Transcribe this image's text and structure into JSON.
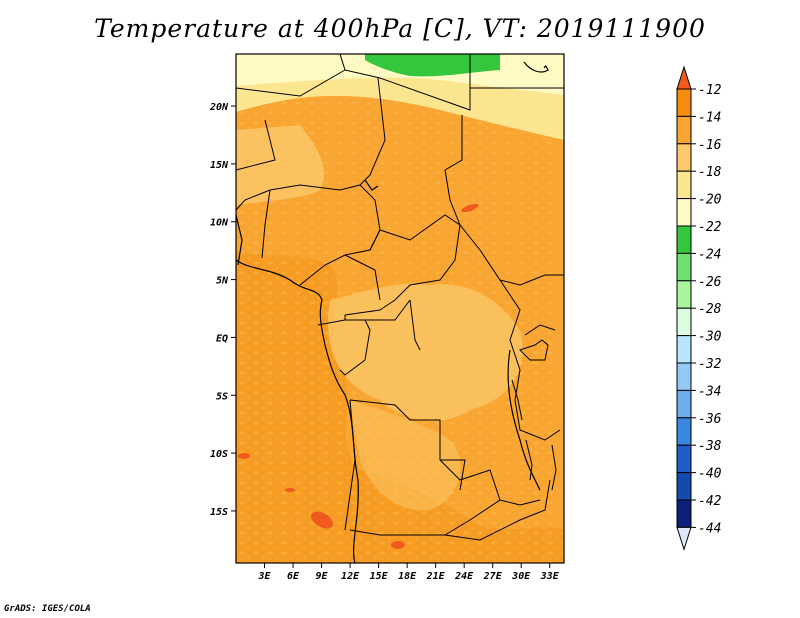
{
  "title": "Temperature at 400hPa [C], VT: 2019111900",
  "credit": "GrADS: IGES/COLA",
  "map": {
    "lat_labels": [
      "20N",
      "15N",
      "10N",
      "5N",
      "EQ",
      "5S",
      "10S",
      "15S"
    ],
    "lon_labels": [
      "3E",
      "6E",
      "9E",
      "12E",
      "15E",
      "18E",
      "21E",
      "24E",
      "27E",
      "30E",
      "33E"
    ],
    "lat_range": [
      -19.5,
      24.5
    ],
    "lon_range": [
      0,
      34.5
    ]
  },
  "colorbar": {
    "levels": [
      "-12",
      "-14",
      "-16",
      "-18",
      "-20",
      "-22",
      "-24",
      "-26",
      "-28",
      "-30",
      "-32",
      "-34",
      "-36",
      "-38",
      "-40",
      "-42",
      "-44"
    ],
    "colors": [
      "#f05a1e",
      "#f58c0a",
      "#f8a531",
      "#fbc96b",
      "#fbe68f",
      "#fff9c3",
      "#34c63c",
      "#6ce16e",
      "#a9f59c",
      "#dcfce0",
      "#b8e4ff",
      "#94c8f5",
      "#6aafec",
      "#3a87df",
      "#1f5dc8",
      "#144aae",
      "#0d1f7a"
    ],
    "top_color": "#f05a1e",
    "bottom_color": "#e0e5f8"
  }
}
